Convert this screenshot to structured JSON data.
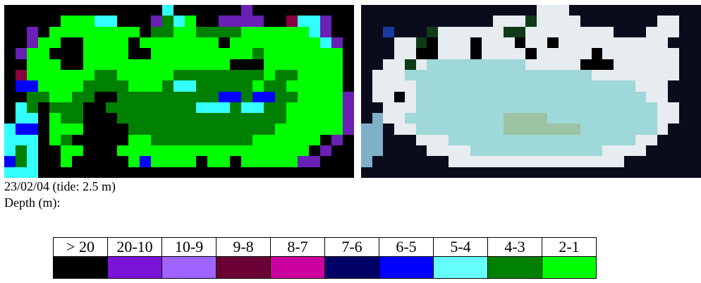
{
  "caption": "23/02/04 (tide: 2.5 m)",
  "depth_label": "Depth (m):",
  "legend": [
    {
      "label": "> 20",
      "color": "#000000"
    },
    {
      "label": "20-10",
      "color": "#7b13d8"
    },
    {
      "label": "10-9",
      "color": "#9f63ff"
    },
    {
      "label": "9-8",
      "color": "#6a0033"
    },
    {
      "label": "8-7",
      "color": "#cc00a0"
    },
    {
      "label": "7-6",
      "color": "#000066"
    },
    {
      "label": "6-5",
      "color": "#0000ff"
    },
    {
      "label": "5-4",
      "color": "#66ffff"
    },
    {
      "label": "4-3",
      "color": "#008000"
    },
    {
      "label": "2-1",
      "color": "#00ff00"
    }
  ]
}
